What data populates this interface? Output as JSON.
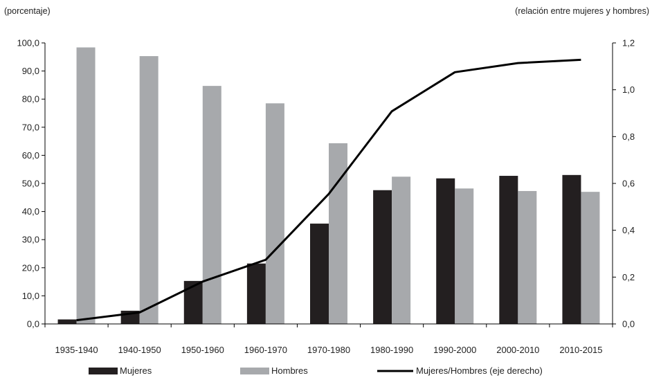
{
  "chart_data": {
    "type": "bar",
    "left_axis_unit": "(porcentaje)",
    "right_axis_unit": "(relación entre mujeres y hombres)",
    "categories": [
      "1935-1940",
      "1940-1950",
      "1950-1960",
      "1960-1970",
      "1970-1980",
      "1980-1990",
      "1990-2000",
      "2000-2010",
      "2010-2015"
    ],
    "y_ticks": [
      "0,0",
      "10,0",
      "20,0",
      "30,0",
      "40,0",
      "50,0",
      "60,0",
      "70,0",
      "80,0",
      "90,0",
      "100,0"
    ],
    "y2_ticks": [
      "0,0",
      "0,2",
      "0,4",
      "0,6",
      "0,8",
      "1,0",
      "1,2"
    ],
    "ylim": [
      0,
      100
    ],
    "y2lim": [
      0,
      1.2
    ],
    "series": [
      {
        "name": "Mujeres",
        "type": "bar",
        "axis": "left",
        "color": "#231f20",
        "values": [
          1.6,
          4.7,
          15.3,
          21.5,
          35.7,
          47.6,
          51.8,
          52.7,
          53.0
        ]
      },
      {
        "name": "Hombres",
        "type": "bar",
        "axis": "left",
        "color": "#a7a9ac",
        "values": [
          98.4,
          95.3,
          84.7,
          78.5,
          64.3,
          52.4,
          48.2,
          47.3,
          47.0
        ]
      },
      {
        "name": "Mujeres/Hombres (eje derecho)",
        "type": "line",
        "axis": "right",
        "color": "#000000",
        "values": [
          0.016,
          0.049,
          0.181,
          0.274,
          0.555,
          0.908,
          1.075,
          1.114,
          1.128
        ]
      }
    ],
    "grid": false,
    "legend_position": "bottom"
  }
}
